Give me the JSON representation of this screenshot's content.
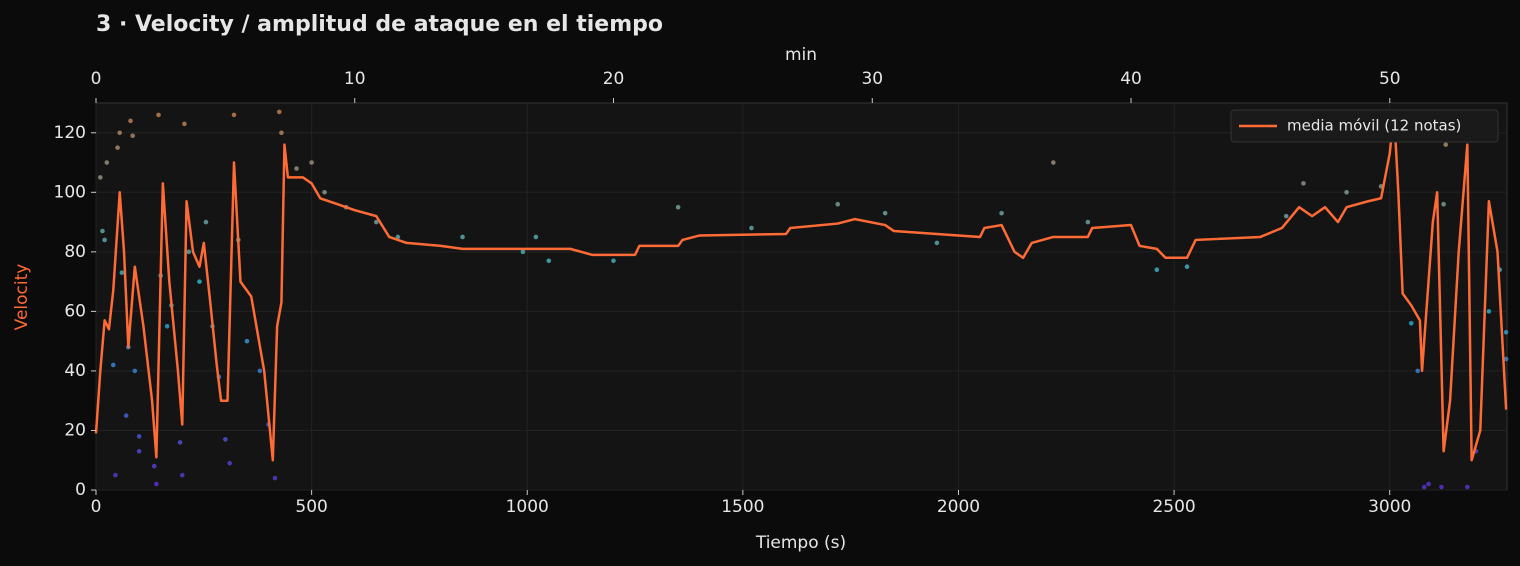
{
  "chart_data": {
    "type": "line",
    "title": "3 · Velocity / amplitud de ataque en el tiempo",
    "xlabel": "Tiempo (s)",
    "ylabel": "Velocity",
    "ylabel_color": "#ff6b35",
    "x2label": "min",
    "xlim": [
      0,
      3272
    ],
    "xticks": [
      0,
      500,
      1000,
      1500,
      2000,
      2500,
      3000
    ],
    "ylim": [
      0,
      130
    ],
    "yticks": [
      0,
      20,
      40,
      60,
      80,
      100,
      120
    ],
    "x2lim": [
      0,
      54.53
    ],
    "x2ticks": [
      0,
      10,
      20,
      30,
      40,
      50
    ],
    "grid": true,
    "legend": "upper right",
    "series": [
      {
        "name": "media móvil (12 notas)",
        "color": "#ff6b35",
        "x": [
          0,
          10,
          20,
          30,
          40,
          55,
          65,
          75,
          90,
          110,
          130,
          140,
          155,
          170,
          190,
          200,
          210,
          225,
          240,
          250,
          265,
          280,
          290,
          305,
          320,
          335,
          360,
          390,
          410,
          420,
          430,
          437,
          445,
          480,
          500,
          520,
          560,
          600,
          650,
          680,
          720,
          800,
          850,
          900,
          1000,
          1100,
          1150,
          1250,
          1260,
          1350,
          1360,
          1400,
          1600,
          1610,
          1720,
          1760,
          1830,
          1850,
          1950,
          2050,
          2060,
          2100,
          2130,
          2150,
          2170,
          2220,
          2300,
          2310,
          2400,
          2420,
          2460,
          2480,
          2530,
          2550,
          2700,
          2750,
          2790,
          2820,
          2850,
          2880,
          2900,
          2950,
          2980,
          3000,
          3010,
          3020,
          3030,
          3050,
          3070,
          3075,
          3100,
          3110,
          3125,
          3140,
          3160,
          3180,
          3190,
          3210,
          3230,
          3250,
          3270
        ],
        "values": [
          19,
          40,
          57,
          54,
          67,
          100,
          80,
          48,
          75,
          55,
          30,
          11,
          103,
          70,
          40,
          22,
          97,
          80,
          75,
          83,
          63,
          42,
          30,
          30,
          110,
          70,
          65,
          40,
          10,
          55,
          63,
          116,
          105,
          105,
          103,
          98,
          96,
          94,
          92,
          85,
          83,
          82,
          81,
          81,
          81,
          81,
          79,
          79,
          82,
          82,
          84,
          85.5,
          86,
          88,
          89.5,
          91,
          89,
          87,
          86,
          85,
          88,
          89,
          80,
          78,
          83,
          85,
          85,
          88,
          89,
          82,
          81,
          78,
          78,
          84,
          85,
          88,
          95,
          92,
          95,
          90,
          95,
          97,
          98,
          113,
          127,
          100,
          66,
          62,
          57,
          40,
          90,
          100,
          13,
          30,
          80,
          116,
          10,
          20,
          97,
          80,
          27
        ]
      }
    ],
    "points": {
      "colormap": [
        "#5b2fc9",
        "#3b6fd6",
        "#26b5c8",
        "#7a9a94",
        "#c87848"
      ],
      "x": [
        10,
        15,
        20,
        25,
        40,
        45,
        50,
        55,
        60,
        70,
        75,
        80,
        85,
        90,
        100,
        100,
        135,
        140,
        145,
        150,
        165,
        175,
        195,
        200,
        205,
        215,
        240,
        255,
        270,
        285,
        300,
        310,
        320,
        330,
        350,
        380,
        400,
        415,
        425,
        430,
        465,
        500,
        530,
        580,
        650,
        700,
        850,
        990,
        1020,
        1050,
        1200,
        1350,
        1520,
        1720,
        1830,
        1950,
        2100,
        2220,
        2300,
        2460,
        2530,
        2760,
        2800,
        2900,
        2980,
        3005,
        3050,
        3065,
        3080,
        3090,
        3120,
        3125,
        3130,
        3170,
        3180,
        3200,
        3230,
        3255,
        3270,
        3270
      ],
      "values": [
        105,
        87,
        84,
        110,
        42,
        5,
        115,
        120,
        73,
        25,
        48,
        124,
        119,
        40,
        18,
        13,
        8,
        2,
        126,
        72,
        55,
        62,
        16,
        5,
        123,
        80,
        70,
        90,
        55,
        38,
        17,
        9,
        126,
        84,
        50,
        40,
        22,
        4,
        127,
        120,
        108,
        110,
        100,
        95,
        90,
        85,
        85,
        80,
        85,
        77,
        77,
        95,
        88,
        96,
        93,
        83,
        93,
        110,
        90,
        74,
        75,
        92,
        103,
        100,
        102,
        127,
        56,
        40,
        1,
        2,
        1,
        96,
        116,
        120,
        1,
        13,
        60,
        74,
        53,
        44
      ]
    }
  }
}
